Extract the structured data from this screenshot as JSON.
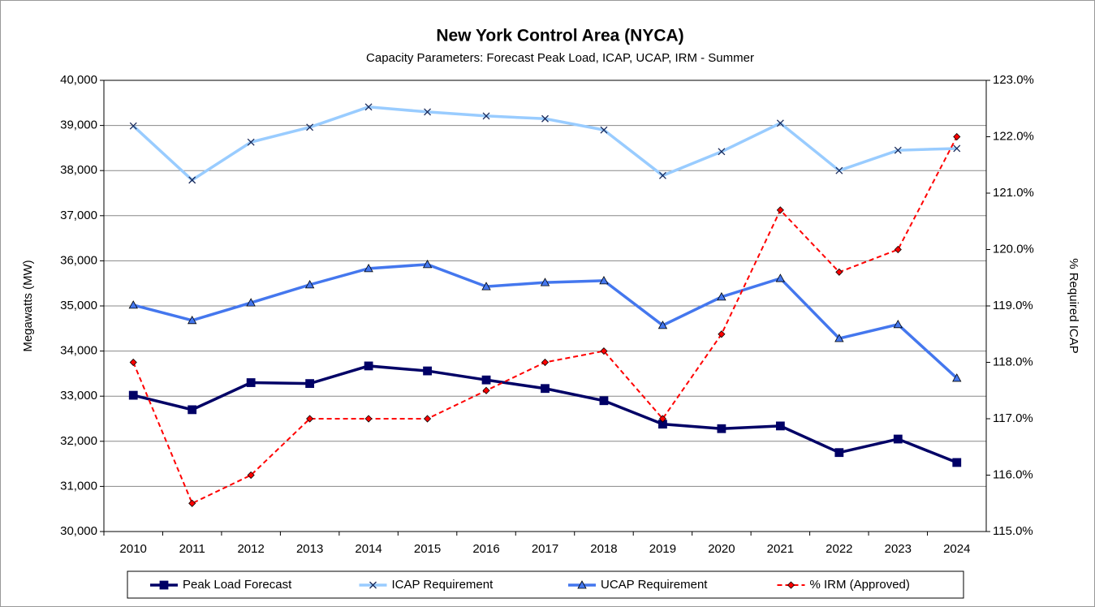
{
  "chart_data": {
    "type": "line",
    "title": "New York Control Area (NYCA)",
    "subtitle": "Capacity Parameters: Forecast Peak Load, ICAP, UCAP, IRM - Summer",
    "ylabel": "Megawatts (MW)",
    "y2label": "% Required ICAP",
    "categories": [
      "2010",
      "2011",
      "2012",
      "2013",
      "2014",
      "2015",
      "2016",
      "2017",
      "2018",
      "2019",
      "2020",
      "2021",
      "2022",
      "2023",
      "2024"
    ],
    "series": [
      {
        "name": "Peak Load Forecast",
        "color": "#000066",
        "marker": "square",
        "dashed": false,
        "values": [
          33020,
          32700,
          33300,
          33280,
          33670,
          33560,
          33360,
          33170,
          32900,
          32380,
          32280,
          32340,
          31750,
          32050,
          31530
        ]
      },
      {
        "name": "ICAP Requirement",
        "color": "#99ccff",
        "marker": "x",
        "dashed": false,
        "values": [
          38990,
          37790,
          38630,
          38960,
          39410,
          39300,
          39210,
          39150,
          38900,
          37890,
          38420,
          39050,
          38000,
          38450,
          38490
        ]
      },
      {
        "name": "UCAP Requirement",
        "color": "#4477ee",
        "marker": "triangle",
        "dashed": false,
        "values": [
          35020,
          34680,
          35070,
          35470,
          35830,
          35920,
          35430,
          35520,
          35560,
          34570,
          35200,
          35610,
          34280,
          34590,
          33400
        ]
      },
      {
        "name": "% IRM (Approved)",
        "color": "#ff0000",
        "marker": "diamond",
        "dashed": true,
        "axis": "y2",
        "values": [
          118.0,
          115.5,
          116.0,
          117.0,
          117.0,
          117.0,
          117.5,
          118.0,
          118.2,
          117.0,
          118.5,
          120.7,
          119.6,
          120.0,
          122.0
        ]
      }
    ],
    "ylim": [
      30000,
      40000
    ],
    "yticks": [
      {
        "value": 30000,
        "label": "30,000"
      },
      {
        "value": 31000,
        "label": "31,000"
      },
      {
        "value": 32000,
        "label": "32,000"
      },
      {
        "value": 33000,
        "label": "33,000"
      },
      {
        "value": 34000,
        "label": "34,000"
      },
      {
        "value": 35000,
        "label": "35,000"
      },
      {
        "value": 36000,
        "label": "36,000"
      },
      {
        "value": 37000,
        "label": "37,000"
      },
      {
        "value": 38000,
        "label": "38,000"
      },
      {
        "value": 39000,
        "label": "39,000"
      },
      {
        "value": 40000,
        "label": "40,000"
      }
    ],
    "y2lim": [
      115,
      123
    ],
    "y2ticks": [
      {
        "value": 115,
        "label": "115.0%"
      },
      {
        "value": 116,
        "label": "116.0%"
      },
      {
        "value": 117,
        "label": "117.0%"
      },
      {
        "value": 118,
        "label": "118.0%"
      },
      {
        "value": 119,
        "label": "119.0%"
      },
      {
        "value": 120,
        "label": "120.0%"
      },
      {
        "value": 121,
        "label": "121.0%"
      },
      {
        "value": 122,
        "label": "122.0%"
      },
      {
        "value": 123,
        "label": "123.0%"
      }
    ],
    "grid": true,
    "legend": "bottom"
  }
}
